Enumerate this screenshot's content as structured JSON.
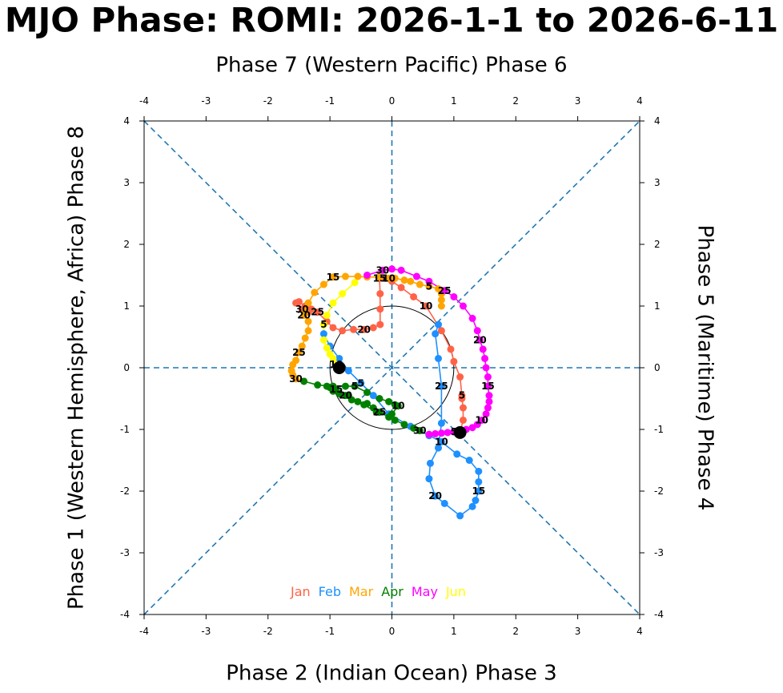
{
  "chart_data": {
    "type": "phase",
    "title": "MJO Phase: ROMI: 2026-1-1 to 2026-6-11",
    "top_label": "Phase 7 (Western Pacific) Phase 6",
    "bottom_label": "Phase 2 (Indian Ocean) Phase 3",
    "left_label": "Phase 1 (Western Hemisphere, Africa) Phase 8",
    "right_label": "Phase 5 (Maritime) Phase 4",
    "xlim": [
      -4,
      4
    ],
    "ylim": [
      -4,
      4
    ],
    "xticks": [
      -4,
      -3,
      -2,
      -1,
      0,
      1,
      2,
      3,
      4
    ],
    "yticks": [
      -4,
      -3,
      -2,
      -1,
      0,
      1,
      2,
      3,
      4
    ],
    "day_labels": [
      5,
      10,
      15,
      20,
      25,
      30
    ],
    "series": [
      {
        "name": "Jan",
        "color": "#ff6347",
        "x": [
          1.1,
          1.15,
          1.15,
          1.13,
          1.13,
          1.1,
          1.0,
          0.95,
          0.8,
          0.55,
          0.35,
          0.15,
          0.0,
          -0.1,
          -0.2,
          -0.19,
          -0.19,
          -0.19,
          -0.3,
          -0.45,
          -0.62,
          -0.8,
          -0.95,
          -1.05,
          -1.2,
          -1.3,
          -1.4,
          -1.5,
          -1.55,
          -1.45,
          -1.35
        ],
        "y": [
          -1.05,
          -0.85,
          -0.65,
          -0.5,
          -0.45,
          -0.15,
          0.1,
          0.3,
          0.6,
          1.0,
          1.15,
          1.3,
          1.4,
          1.45,
          1.45,
          1.2,
          0.95,
          0.7,
          0.65,
          0.62,
          0.62,
          0.6,
          0.65,
          0.75,
          0.9,
          0.95,
          1.0,
          1.07,
          1.05,
          0.95,
          0.9
        ]
      },
      {
        "name": "Feb",
        "color": "#1e90ff",
        "x": [
          -1.1,
          -1.0,
          -0.85,
          -0.7,
          -0.5,
          -0.3,
          -0.05,
          0.3,
          0.6,
          0.8,
          1.05,
          1.25,
          1.4,
          1.4,
          1.4,
          1.35,
          1.3,
          1.1,
          0.85,
          0.7,
          0.6,
          0.62,
          0.75,
          0.8,
          0.8,
          0.75,
          0.7,
          0.75
        ],
        "y": [
          0.55,
          0.35,
          0.15,
          -0.05,
          -0.25,
          -0.45,
          -0.75,
          -0.95,
          -1.1,
          -1.2,
          -1.4,
          -1.5,
          -1.68,
          -1.85,
          -2.0,
          -2.15,
          -2.25,
          -2.4,
          -2.2,
          -2.08,
          -1.8,
          -1.55,
          -1.3,
          -0.9,
          -0.3,
          0.15,
          0.55,
          0.7
        ]
      },
      {
        "name": "Mar",
        "color": "#ffa500",
        "x": [
          0.8,
          0.8,
          0.8,
          0.75,
          0.6,
          0.45,
          0.3,
          0.2,
          0.05,
          -0.05,
          -0.2,
          -0.4,
          -0.55,
          -0.75,
          -0.95,
          -1.1,
          -1.25,
          -1.35,
          -1.4,
          -1.42,
          -1.35,
          -1.35,
          -1.4,
          -1.45,
          -1.5,
          -1.55,
          -1.6,
          -1.62,
          -1.6,
          -1.55,
          -1.42
        ],
        "y": [
          1.0,
          1.1,
          1.2,
          1.28,
          1.32,
          1.35,
          1.4,
          1.42,
          1.45,
          1.45,
          1.47,
          1.47,
          1.48,
          1.48,
          1.47,
          1.35,
          1.22,
          1.05,
          0.92,
          0.85,
          0.75,
          0.6,
          0.48,
          0.35,
          0.25,
          0.12,
          0.05,
          -0.05,
          -0.12,
          -0.18,
          -0.22
        ]
      },
      {
        "name": "Apr",
        "color": "#008000",
        "x": [
          -1.42,
          -1.2,
          -0.95,
          -0.75,
          -0.6,
          -0.4,
          -0.2,
          -0.05,
          0.05,
          0.1,
          0.0,
          -0.25,
          -0.45,
          -0.7,
          -0.9,
          -1.05,
          -1.0,
          -0.95,
          -0.85,
          -0.75,
          -0.65,
          -0.55,
          -0.4,
          -0.3,
          -0.2,
          -0.05,
          0.05,
          0.2,
          0.35,
          0.45
        ],
        "y": [
          -0.22,
          -0.28,
          -0.3,
          -0.3,
          -0.3,
          -0.4,
          -0.5,
          -0.55,
          -0.6,
          -0.62,
          -0.75,
          -0.72,
          -0.6,
          -0.45,
          -0.35,
          -0.3,
          -0.32,
          -0.38,
          -0.42,
          -0.45,
          -0.52,
          -0.55,
          -0.58,
          -0.65,
          -0.72,
          -0.8,
          -0.85,
          -0.92,
          -0.98,
          -1.02
        ]
      },
      {
        "name": "May",
        "color": "#ff00ff",
        "x": [
          0.6,
          0.7,
          0.8,
          0.9,
          1.0,
          1.1,
          1.2,
          1.3,
          1.38,
          1.45,
          1.52,
          1.55,
          1.57,
          1.57,
          1.55,
          1.55,
          1.52,
          1.5,
          1.47,
          1.42,
          1.38,
          1.3,
          1.15,
          1.0,
          0.85,
          0.6,
          0.4,
          0.15,
          0.0,
          -0.15,
          -0.4
        ],
        "y": [
          -1.08,
          -1.07,
          -1.06,
          -1.05,
          -1.04,
          -1.03,
          -1.0,
          -0.97,
          -0.92,
          -0.85,
          -0.75,
          -0.65,
          -0.55,
          -0.45,
          -0.3,
          -0.15,
          0.0,
          0.15,
          0.3,
          0.45,
          0.6,
          0.8,
          1.0,
          1.15,
          1.25,
          1.4,
          1.48,
          1.58,
          1.6,
          1.58,
          1.5
        ]
      },
      {
        "name": "Jun",
        "color": "#ffff00",
        "x": [
          -0.6,
          -0.8,
          -0.95,
          -1.05,
          -1.1,
          -1.1,
          -1.05,
          -1.0,
          -0.95,
          -0.9,
          -0.85
        ],
        "y": [
          1.38,
          1.2,
          1.05,
          0.85,
          0.7,
          0.45,
          0.32,
          0.22,
          0.15,
          0.05,
          0.0
        ]
      }
    ]
  }
}
